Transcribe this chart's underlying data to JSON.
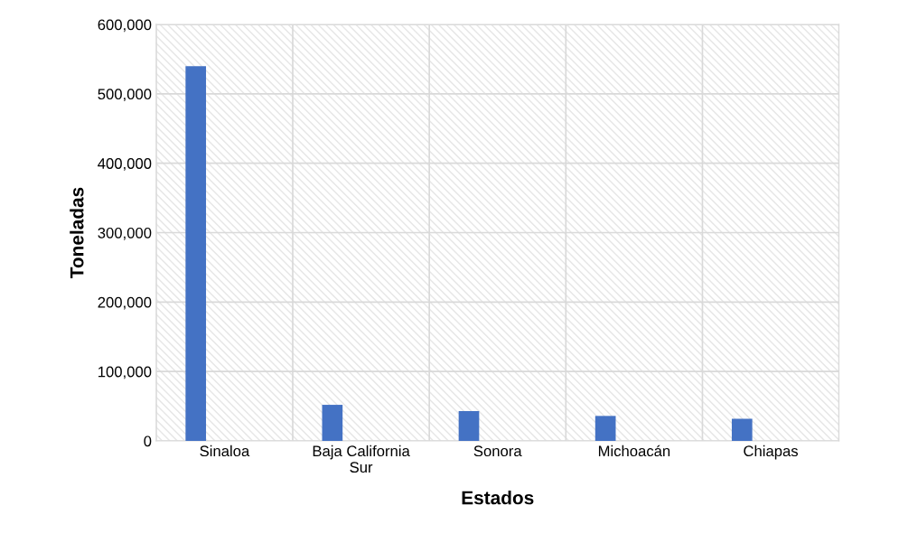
{
  "chart_data": {
    "type": "bar",
    "xlabel": "Estados",
    "ylabel": "Toneladas",
    "categories": [
      "Sinaloa",
      "Baja California\nSur",
      "Sonora",
      "Michoacán",
      "Chiapas"
    ],
    "values": [
      540000,
      52000,
      43000,
      36000,
      32000
    ],
    "color": "#4472c4",
    "ylim": [
      0,
      600000
    ],
    "yticks": [
      {
        "value": 0,
        "label": "0"
      },
      {
        "value": 100000,
        "label": "100,000"
      },
      {
        "value": 200000,
        "label": "200,000"
      },
      {
        "value": 300000,
        "label": "300,000"
      },
      {
        "value": 400000,
        "label": "400,000"
      },
      {
        "value": 500000,
        "label": "500,000"
      },
      {
        "value": 600000,
        "label": "600,000"
      }
    ],
    "grid": true
  }
}
